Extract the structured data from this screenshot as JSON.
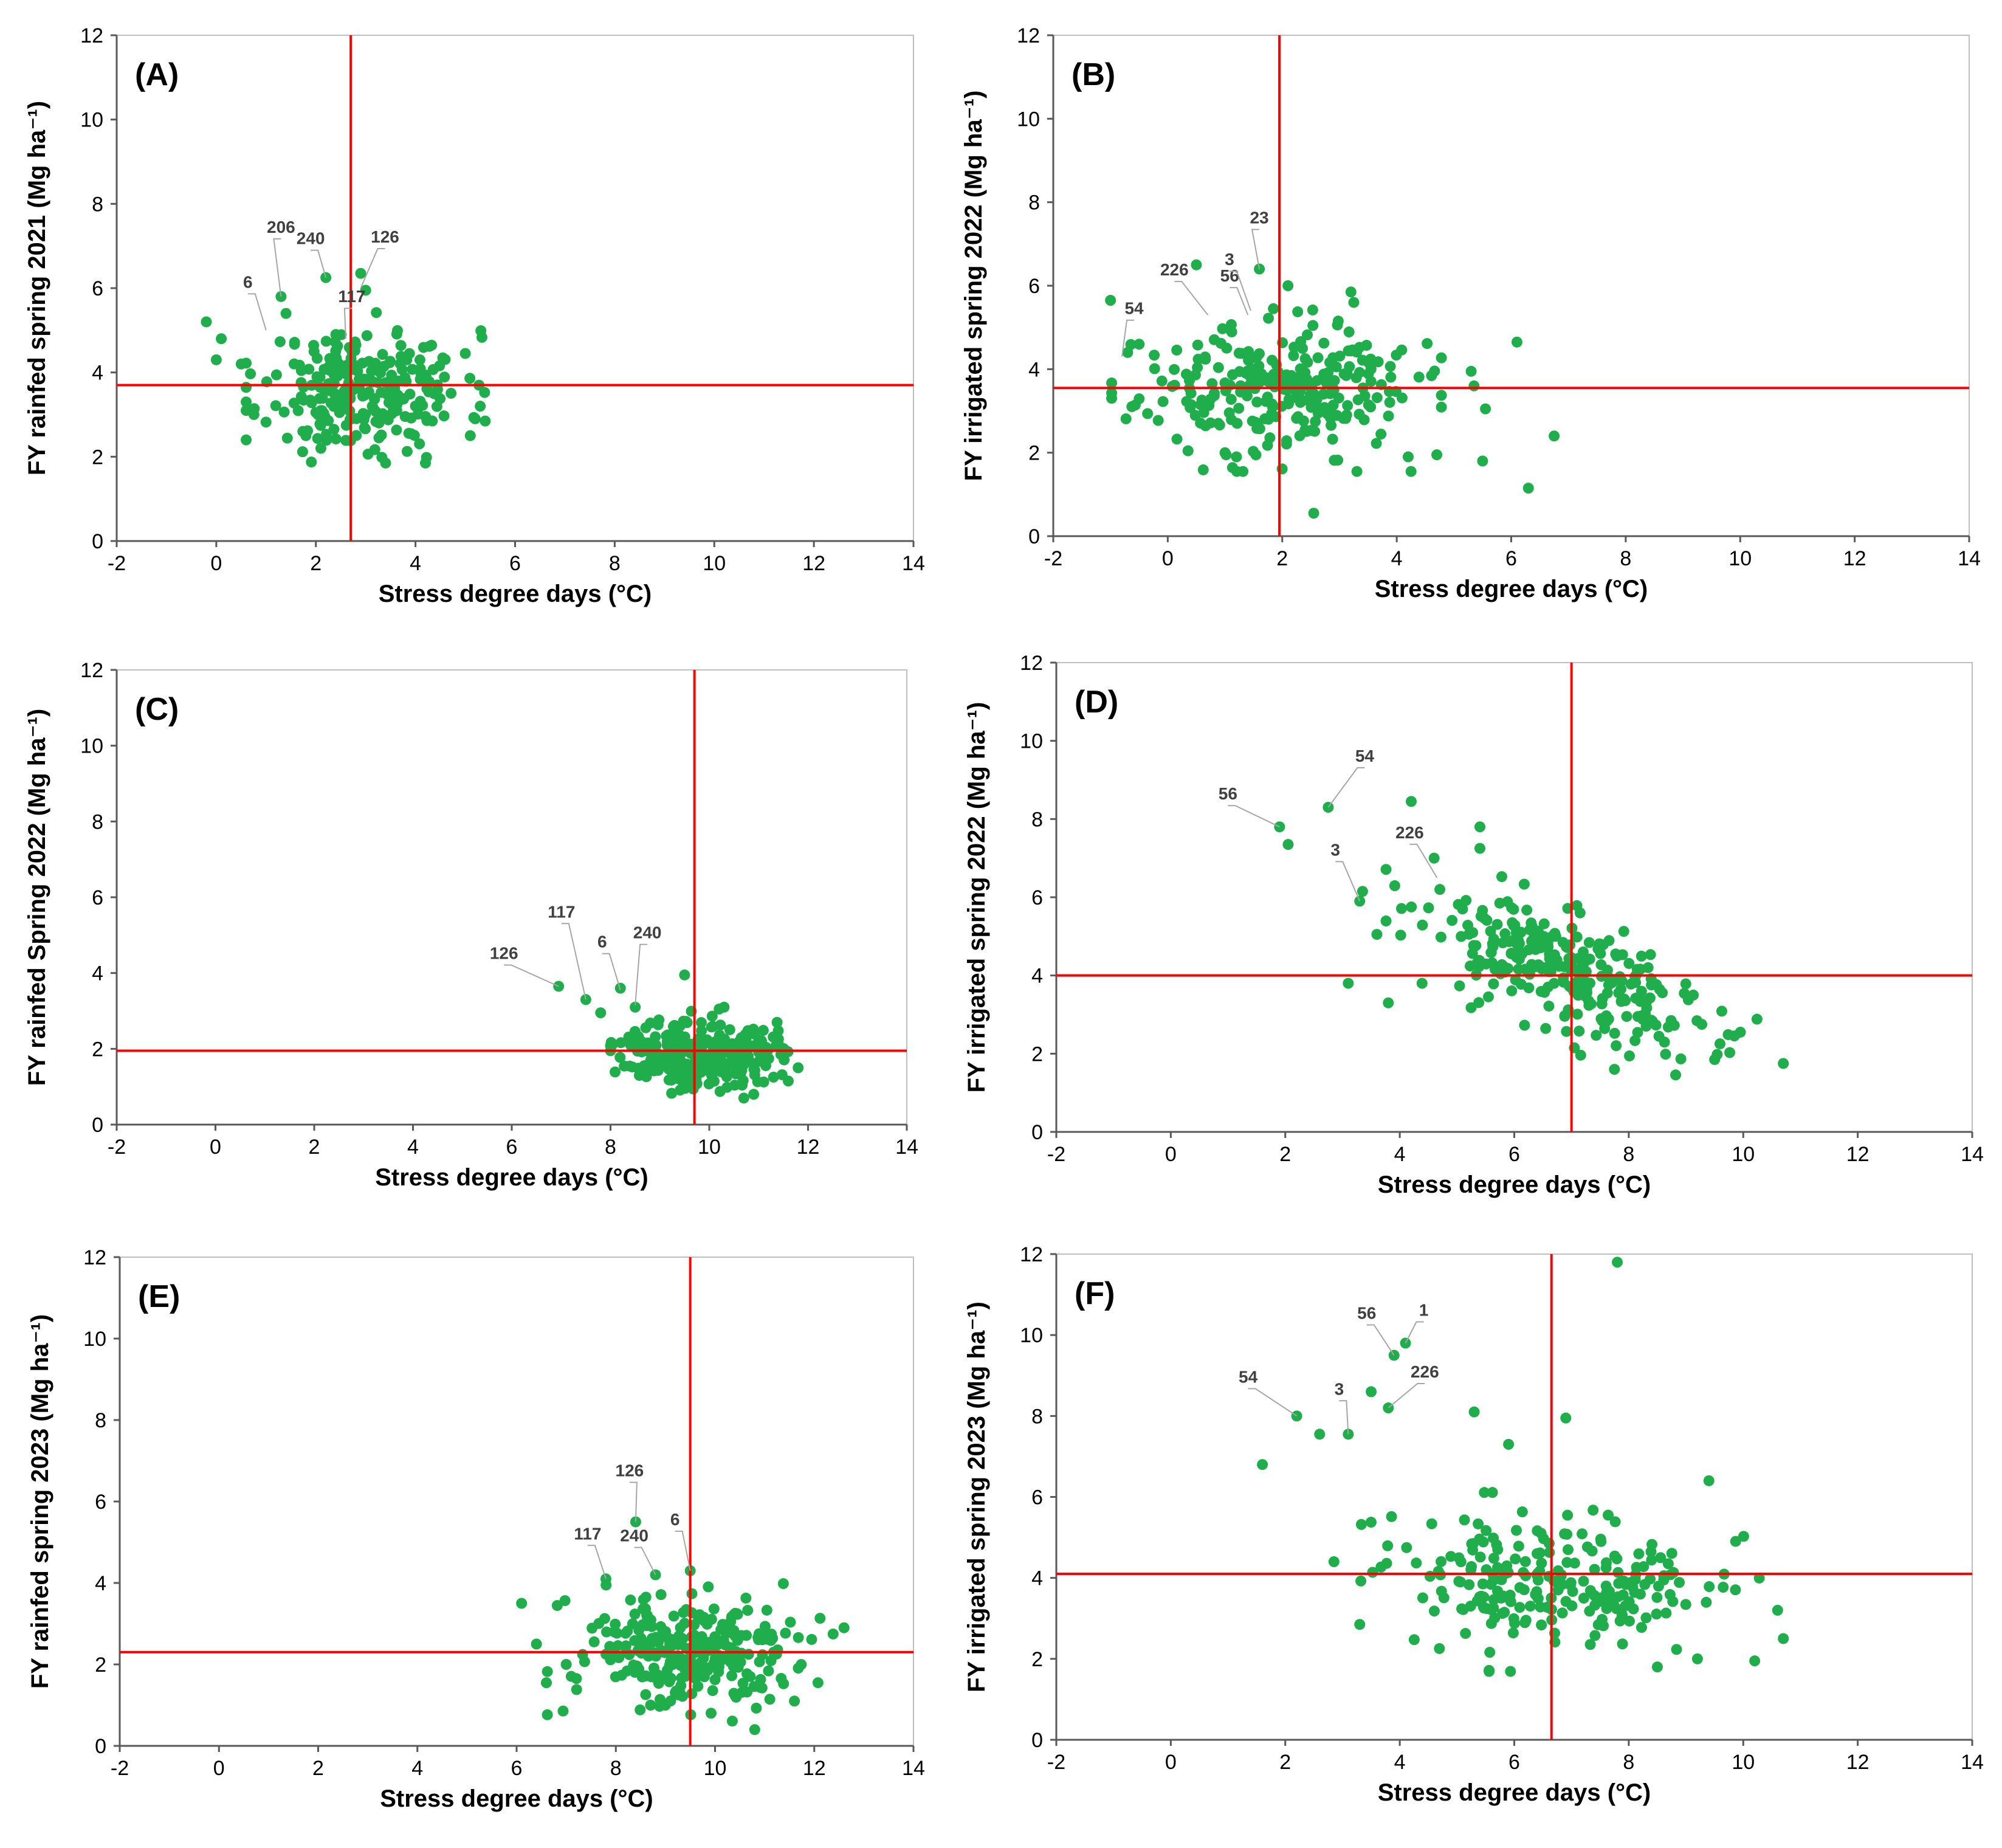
{
  "chart_data": [
    {
      "panel": "(A)",
      "type": "scatter",
      "xlabel": "Stress degree days (°C)",
      "ylabel": "FY rainfed spring 2021 (Mg ha⁻¹)",
      "xlim": [
        -2,
        14
      ],
      "ylim": [
        0,
        12
      ],
      "xticks": [
        "-2",
        "0",
        "2",
        "4",
        "6",
        "8",
        "10",
        "12",
        "14"
      ],
      "yticks": [
        "0",
        "2",
        "4",
        "6",
        "8",
        "10",
        "12"
      ],
      "ref_lines": {
        "x": 2.7,
        "y": 3.7
      },
      "cluster": {
        "cx": 3.0,
        "cy": 3.6,
        "sx": 1.0,
        "sy": 0.7,
        "n": 260,
        "seed": 11
      },
      "points": [
        [
          -0.2,
          5.2
        ],
        [
          0.0,
          4.3
        ],
        [
          0.1,
          4.8
        ],
        [
          0.5,
          4.2
        ],
        [
          0.6,
          3.3
        ],
        [
          1.3,
          5.8
        ],
        [
          1.4,
          5.4
        ],
        [
          2.2,
          6.25
        ],
        [
          2.9,
          6.35
        ],
        [
          3.0,
          5.95
        ],
        [
          2.4,
          4.9
        ],
        [
          5.0,
          4.45
        ],
        [
          5.3,
          3.2
        ],
        [
          5.1,
          2.5
        ],
        [
          3.4,
          1.85
        ],
        [
          4.2,
          1.85
        ],
        [
          2.1,
          2.2
        ],
        [
          1.8,
          2.5
        ]
      ],
      "annotations": [
        {
          "label": "6",
          "x": 1.0,
          "y": 5.0
        },
        {
          "label": "206",
          "x": 1.3,
          "y": 5.8
        },
        {
          "label": "240",
          "x": 2.2,
          "y": 6.25
        },
        {
          "label": "117",
          "x": 2.6,
          "y": 4.8
        },
        {
          "label": "126",
          "x": 2.9,
          "y": 6.0
        }
      ]
    },
    {
      "panel": "(B)",
      "type": "scatter",
      "xlabel": "Stress degree days (°C)",
      "ylabel": "FY irrigated spring 2022 (Mg ha⁻¹)",
      "xlim": [
        -2,
        14
      ],
      "ylim": [
        0,
        12
      ],
      "xticks": [
        "-2",
        "0",
        "2",
        "4",
        "6",
        "8",
        "10",
        "12",
        "14"
      ],
      "yticks": [
        "0",
        "2",
        "4",
        "6",
        "8",
        "10",
        "12"
      ],
      "ref_lines": {
        "x": 1.95,
        "y": 3.55
      },
      "cluster": {
        "cx": 1.9,
        "cy": 3.5,
        "sx": 1.2,
        "sy": 0.75,
        "n": 270,
        "seed": 23
      },
      "points": [
        [
          -1.0,
          5.65
        ],
        [
          -0.7,
          4.4
        ],
        [
          -0.5,
          4.6
        ],
        [
          0.5,
          6.5
        ],
        [
          1.6,
          6.4
        ],
        [
          2.1,
          6.0
        ],
        [
          3.2,
          5.85
        ],
        [
          3.25,
          5.6
        ],
        [
          6.1,
          4.65
        ],
        [
          6.75,
          2.4
        ],
        [
          6.3,
          1.15
        ],
        [
          2.55,
          0.55
        ],
        [
          5.5,
          1.8
        ],
        [
          4.2,
          1.9
        ],
        [
          4.25,
          1.55
        ],
        [
          4.7,
          1.95
        ],
        [
          5.3,
          3.95
        ],
        [
          5.55,
          3.05
        ],
        [
          5.35,
          3.6
        ],
        [
          1.0,
          2.0
        ],
        [
          1.2,
          1.9
        ]
      ],
      "annotations": [
        {
          "label": "54",
          "x": -0.8,
          "y": 4.3
        },
        {
          "label": "226",
          "x": 0.7,
          "y": 5.3
        },
        {
          "label": "56",
          "x": 1.4,
          "y": 5.3
        },
        {
          "label": "3",
          "x": 1.45,
          "y": 5.4
        },
        {
          "label": "23",
          "x": 1.6,
          "y": 6.4
        }
      ]
    },
    {
      "panel": "(C)",
      "type": "scatter",
      "xlabel": "Stress degree days (°C)",
      "ylabel": "FY rainfed Spring 2022 (Mg ha⁻¹)",
      "xlim": [
        -2,
        14
      ],
      "ylim": [
        0,
        12
      ],
      "xticks": [
        "-2",
        "0",
        "2",
        "4",
        "6",
        "8",
        "10",
        "12",
        "14"
      ],
      "yticks": [
        "0",
        "2",
        "4",
        "6",
        "8",
        "10",
        "12"
      ],
      "ref_lines": {
        "x": 9.7,
        "y": 1.95
      },
      "cluster": {
        "cx": 9.8,
        "cy": 1.9,
        "sx": 0.75,
        "sy": 0.45,
        "n": 280,
        "seed": 37
      },
      "points": [
        [
          6.95,
          3.65
        ],
        [
          7.5,
          3.3
        ],
        [
          7.8,
          2.95
        ],
        [
          8.2,
          3.6
        ],
        [
          8.5,
          3.1
        ],
        [
          9.5,
          3.95
        ],
        [
          10.2,
          3.05
        ],
        [
          10.3,
          3.1
        ],
        [
          11.8,
          1.5
        ],
        [
          11.6,
          1.15
        ],
        [
          11.45,
          1.85
        ],
        [
          10.7,
          0.7
        ],
        [
          10.9,
          0.8
        ],
        [
          8.0,
          1.95
        ]
      ],
      "annotations": [
        {
          "label": "126",
          "x": 6.95,
          "y": 3.65
        },
        {
          "label": "117",
          "x": 7.5,
          "y": 3.3
        },
        {
          "label": "6",
          "x": 8.2,
          "y": 3.55
        },
        {
          "label": "240",
          "x": 8.5,
          "y": 3.15
        }
      ]
    },
    {
      "panel": "(D)",
      "type": "scatter",
      "xlabel": "Stress degree days (°C)",
      "ylabel": "FY irrigated spring 2022 (Mg ha⁻¹)",
      "xlim": [
        -2,
        14
      ],
      "ylim": [
        0,
        12
      ],
      "xticks": [
        "-2",
        "0",
        "2",
        "4",
        "6",
        "8",
        "10",
        "12",
        "14"
      ],
      "yticks": [
        "0",
        "2",
        "4",
        "6",
        "8",
        "10",
        "12"
      ],
      "ref_lines": {
        "x": 7.0,
        "y": 4.0
      },
      "cluster": {
        "cx": 7.0,
        "cy": 4.0,
        "sx": 1.35,
        "sy": 0.75,
        "n": 270,
        "seed": 53,
        "slope": -0.55
      },
      "points": [
        [
          1.9,
          7.8
        ],
        [
          2.05,
          7.35
        ],
        [
          2.75,
          8.3
        ],
        [
          4.2,
          8.45
        ],
        [
          3.35,
          6.15
        ],
        [
          3.3,
          5.9
        ],
        [
          3.1,
          3.8
        ],
        [
          3.8,
          3.3
        ],
        [
          3.6,
          5.05
        ],
        [
          4.6,
          7.0
        ],
        [
          4.7,
          6.2
        ],
        [
          5.4,
          7.8
        ],
        [
          5.4,
          7.25
        ],
        [
          7.15,
          5.6
        ],
        [
          10.7,
          1.75
        ],
        [
          9.95,
          2.55
        ],
        [
          7.75,
          1.6
        ],
        [
          7.05,
          2.15
        ],
        [
          9.5,
          1.85
        ]
      ],
      "annotations": [
        {
          "label": "56",
          "x": 1.9,
          "y": 7.8
        },
        {
          "label": "54",
          "x": 2.75,
          "y": 8.3
        },
        {
          "label": "3",
          "x": 3.3,
          "y": 5.9
        },
        {
          "label": "226",
          "x": 4.65,
          "y": 6.5
        }
      ]
    },
    {
      "panel": "(E)",
      "type": "scatter",
      "xlabel": "Stress degree days (°C)",
      "ylabel": "FY rainfed spring 2023 (Mg ha⁻¹)",
      "xlim": [
        -2,
        14
      ],
      "ylim": [
        0,
        12
      ],
      "xticks": [
        "-2",
        "0",
        "2",
        "4",
        "6",
        "8",
        "10",
        "12",
        "14"
      ],
      "yticks": [
        "0",
        "2",
        "4",
        "6",
        "8",
        "10",
        "12"
      ],
      "ref_lines": {
        "x": 9.5,
        "y": 2.3
      },
      "cluster": {
        "cx": 9.5,
        "cy": 2.3,
        "sx": 1.2,
        "sy": 0.7,
        "n": 280,
        "seed": 71
      },
      "points": [
        [
          6.1,
          3.5
        ],
        [
          6.4,
          2.5
        ],
        [
          6.6,
          1.55
        ],
        [
          7.8,
          4.1
        ],
        [
          8.4,
          5.5
        ],
        [
          8.8,
          4.2
        ],
        [
          9.5,
          4.3
        ],
        [
          12.6,
          2.9
        ],
        [
          11.6,
          1.1
        ],
        [
          10.8,
          0.4
        ],
        [
          9.0,
          1.0
        ],
        [
          8.7,
          1.0
        ],
        [
          7.0,
          2.0
        ]
      ],
      "annotations": [
        {
          "label": "117",
          "x": 7.8,
          "y": 4.1
        },
        {
          "label": "126",
          "x": 8.4,
          "y": 5.5
        },
        {
          "label": "240",
          "x": 8.8,
          "y": 4.2
        },
        {
          "label": "6",
          "x": 9.5,
          "y": 4.3
        }
      ]
    },
    {
      "panel": "(F)",
      "type": "scatter",
      "xlabel": "Stress degree days (°C)",
      "ylabel": "FY irrigated spring 2023 (Mg ha⁻¹)",
      "xlim": [
        -2,
        14
      ],
      "ylim": [
        0,
        12
      ],
      "xticks": [
        "-2",
        "0",
        "2",
        "4",
        "6",
        "8",
        "10",
        "12",
        "14"
      ],
      "yticks": [
        "0",
        "2",
        "4",
        "6",
        "8",
        "10",
        "12"
      ],
      "ref_lines": {
        "x": 6.65,
        "y": 4.1
      },
      "cluster": {
        "cx": 6.8,
        "cy": 3.9,
        "sx": 1.45,
        "sy": 0.85,
        "n": 230,
        "seed": 89
      },
      "points": [
        [
          7.8,
          11.8
        ],
        [
          4.1,
          9.8
        ],
        [
          3.9,
          9.5
        ],
        [
          3.5,
          8.6
        ],
        [
          3.8,
          8.2
        ],
        [
          2.2,
          8.0
        ],
        [
          2.6,
          7.55
        ],
        [
          3.1,
          7.55
        ],
        [
          1.6,
          6.8
        ],
        [
          5.3,
          8.1
        ],
        [
          6.9,
          7.95
        ],
        [
          5.9,
          7.3
        ],
        [
          9.4,
          6.4
        ],
        [
          2.85,
          4.4
        ],
        [
          3.3,
          2.85
        ],
        [
          10.7,
          2.5
        ],
        [
          10.2,
          1.95
        ],
        [
          10.6,
          3.2
        ],
        [
          8.5,
          1.8
        ],
        [
          9.2,
          2.0
        ]
      ],
      "annotations": [
        {
          "label": "54",
          "x": 2.2,
          "y": 8.0
        },
        {
          "label": "3",
          "x": 3.1,
          "y": 7.55
        },
        {
          "label": "56",
          "x": 3.9,
          "y": 9.5
        },
        {
          "label": "1",
          "x": 4.1,
          "y": 9.8
        },
        {
          "label": "226",
          "x": 3.8,
          "y": 8.2
        }
      ]
    }
  ]
}
